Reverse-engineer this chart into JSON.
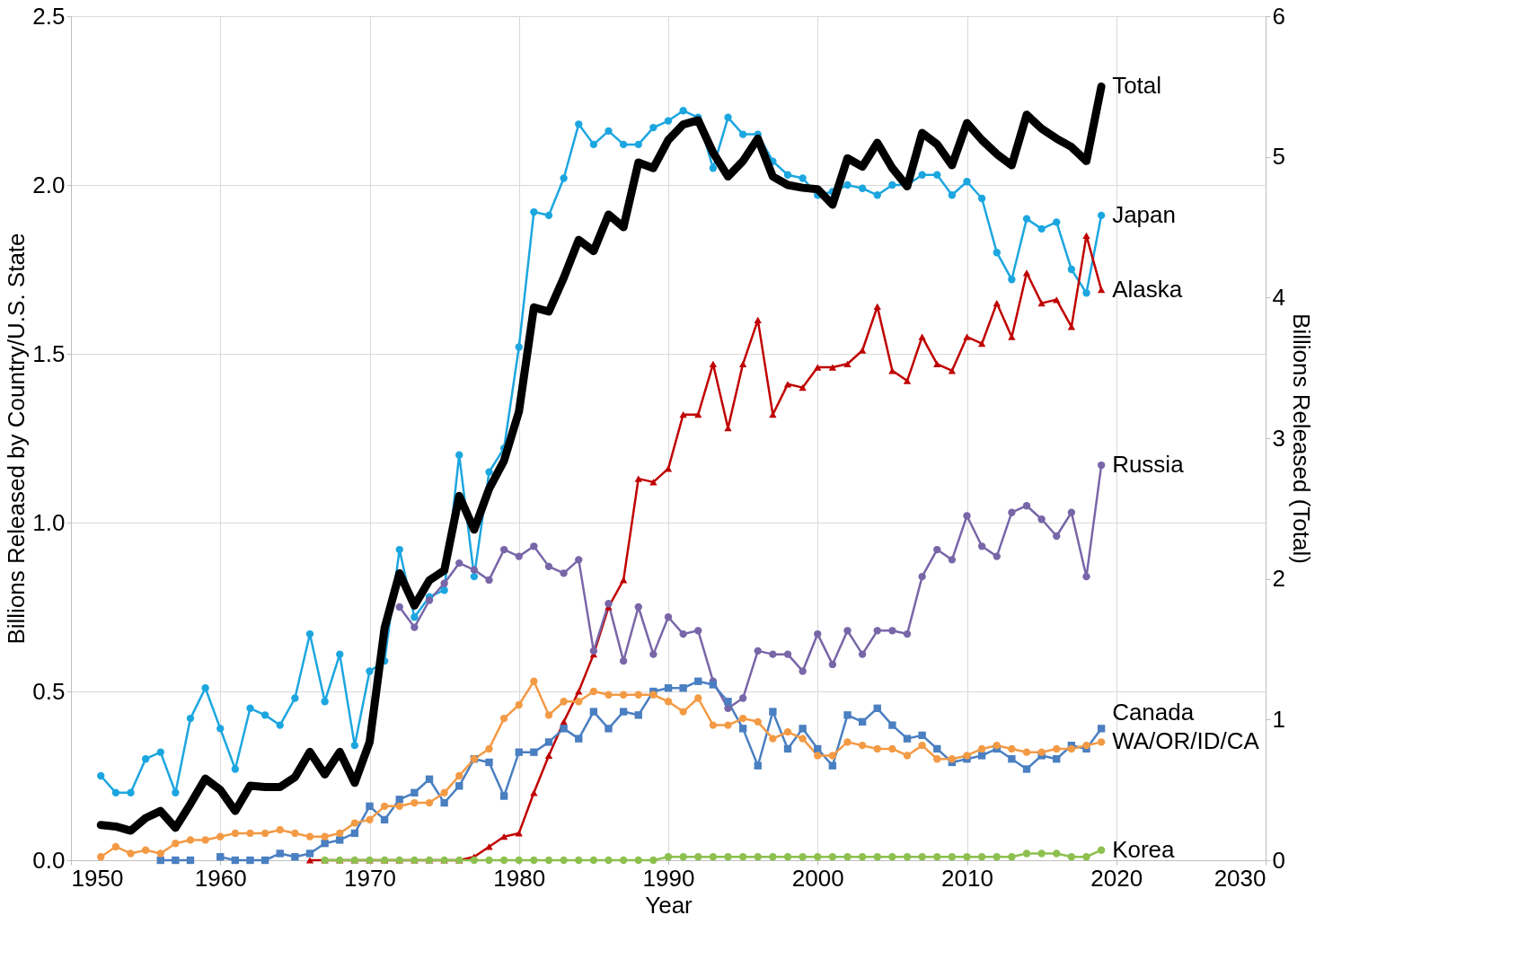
{
  "chart_data": {
    "type": "line",
    "xlabel": "Year",
    "ylabel": "Billions Released by Country/U.S. State",
    "y2label": "Billions Released  (Total)",
    "xlim": [
      1950,
      2030
    ],
    "xticks": [
      1950,
      1960,
      1970,
      1980,
      1990,
      2000,
      2010,
      2020,
      2030
    ],
    "ylim": [
      0,
      2.5
    ],
    "yticks": [
      {
        "value": 0,
        "label": "0.0"
      },
      {
        "value": 0.5,
        "label": "0.5"
      },
      {
        "value": 1,
        "label": "1.0"
      },
      {
        "value": 1.5,
        "label": "1.5"
      },
      {
        "value": 2,
        "label": "2.0"
      },
      {
        "value": 2.5,
        "label": "2.5"
      }
    ],
    "y2lim": [
      0,
      6
    ],
    "y2ticks": [
      0,
      1,
      2,
      3,
      4,
      5,
      6
    ],
    "grid": true,
    "line_style": "solid",
    "x": [
      1952,
      1953,
      1954,
      1955,
      1956,
      1957,
      1958,
      1959,
      1960,
      1961,
      1962,
      1963,
      1964,
      1965,
      1966,
      1967,
      1968,
      1969,
      1970,
      1971,
      1972,
      1973,
      1974,
      1975,
      1976,
      1977,
      1978,
      1979,
      1980,
      1981,
      1982,
      1983,
      1984,
      1985,
      1986,
      1987,
      1988,
      1989,
      1990,
      1991,
      1992,
      1993,
      1994,
      1995,
      1996,
      1997,
      1998,
      1999,
      2000,
      2001,
      2002,
      2003,
      2004,
      2005,
      2006,
      2007,
      2008,
      2009,
      2010,
      2011,
      2012,
      2013,
      2014,
      2015,
      2016,
      2017,
      2018,
      2019
    ],
    "series": [
      {
        "name": "Japan",
        "color": "#1ca6e0",
        "marker": "circle",
        "values": [
          0.25,
          0.2,
          0.2,
          0.3,
          0.32,
          0.2,
          0.42,
          0.51,
          0.39,
          0.27,
          0.45,
          0.43,
          0.4,
          0.48,
          0.67,
          0.47,
          0.61,
          0.34,
          0.56,
          0.59,
          0.92,
          0.72,
          0.78,
          0.8,
          1.2,
          0.84,
          1.15,
          1.22,
          1.52,
          1.92,
          1.91,
          2.02,
          2.18,
          2.12,
          2.16,
          2.12,
          2.12,
          2.17,
          2.19,
          2.22,
          2.2,
          2.05,
          2.2,
          2.15,
          2.15,
          2.07,
          2.03,
          2.02,
          1.97,
          1.98,
          2.0,
          1.99,
          1.97,
          2.0,
          2.0,
          2.03,
          2.03,
          1.97,
          2.01,
          1.96,
          1.8,
          1.72,
          1.9,
          1.87,
          1.89,
          1.75,
          1.68,
          1.91
        ]
      },
      {
        "name": "Alaska",
        "color": "#c00000",
        "marker": "triangle",
        "values": [
          null,
          null,
          null,
          null,
          null,
          null,
          null,
          null,
          null,
          null,
          null,
          null,
          null,
          null,
          0,
          0,
          0,
          0,
          0,
          0,
          0,
          0,
          0,
          0,
          0,
          0.01,
          0.04,
          0.07,
          0.08,
          0.2,
          0.31,
          0.41,
          0.5,
          0.61,
          0.75,
          0.83,
          1.13,
          1.12,
          1.16,
          1.32,
          1.32,
          1.47,
          1.28,
          1.47,
          1.6,
          1.32,
          1.41,
          1.4,
          1.46,
          1.46,
          1.47,
          1.51,
          1.64,
          1.45,
          1.42,
          1.55,
          1.47,
          1.45,
          1.55,
          1.53,
          1.65,
          1.55,
          1.74,
          1.65,
          1.66,
          1.58,
          1.85,
          1.69
        ]
      },
      {
        "name": "Russia",
        "color": "#7866a8",
        "marker": "circle",
        "values": [
          null,
          null,
          null,
          null,
          null,
          null,
          null,
          null,
          null,
          null,
          null,
          null,
          null,
          null,
          null,
          null,
          null,
          null,
          null,
          null,
          0.75,
          0.69,
          0.77,
          0.82,
          0.88,
          0.86,
          0.83,
          0.92,
          0.9,
          0.93,
          0.87,
          0.85,
          0.89,
          0.62,
          0.76,
          0.59,
          0.75,
          0.61,
          0.72,
          0.67,
          0.68,
          0.53,
          0.45,
          0.48,
          0.62,
          0.61,
          0.61,
          0.56,
          0.67,
          0.58,
          0.68,
          0.61,
          0.68,
          0.68,
          0.67,
          0.84,
          0.92,
          0.89,
          1.02,
          0.93,
          0.9,
          1.03,
          1.05,
          1.01,
          0.96,
          1.03,
          0.84,
          1.17
        ]
      },
      {
        "name": "Canada",
        "color": "#4a7fc1",
        "marker": "square",
        "values": [
          null,
          null,
          null,
          null,
          0,
          0,
          0,
          null,
          0.01,
          0,
          0,
          0,
          0.02,
          0.01,
          0.02,
          0.05,
          0.06,
          0.08,
          0.16,
          0.12,
          0.18,
          0.2,
          0.24,
          0.17,
          0.22,
          0.3,
          0.29,
          0.19,
          0.32,
          0.32,
          0.35,
          0.39,
          0.36,
          0.44,
          0.39,
          0.44,
          0.43,
          0.5,
          0.51,
          0.51,
          0.53,
          0.52,
          0.47,
          0.39,
          0.28,
          0.44,
          0.33,
          0.39,
          0.33,
          0.28,
          0.43,
          0.41,
          0.45,
          0.4,
          0.36,
          0.37,
          0.33,
          0.29,
          0.3,
          0.31,
          0.33,
          0.3,
          0.27,
          0.31,
          0.3,
          0.34,
          0.33,
          0.39
        ]
      },
      {
        "name": "WA/OR/ID/CA",
        "color": "#f39a45",
        "marker": "circle",
        "values": [
          0.01,
          0.04,
          0.02,
          0.03,
          0.02,
          0.05,
          0.06,
          0.06,
          0.07,
          0.08,
          0.08,
          0.08,
          0.09,
          0.08,
          0.07,
          0.07,
          0.08,
          0.11,
          0.12,
          0.16,
          0.16,
          0.17,
          0.17,
          0.2,
          0.25,
          0.3,
          0.33,
          0.42,
          0.46,
          0.53,
          0.43,
          0.47,
          0.47,
          0.5,
          0.49,
          0.49,
          0.49,
          0.49,
          0.47,
          0.44,
          0.48,
          0.4,
          0.4,
          0.42,
          0.41,
          0.36,
          0.38,
          0.36,
          0.31,
          0.31,
          0.35,
          0.34,
          0.33,
          0.33,
          0.31,
          0.34,
          0.3,
          0.3,
          0.31,
          0.33,
          0.34,
          0.33,
          0.32,
          0.32,
          0.33,
          0.33,
          0.34,
          0.35
        ]
      },
      {
        "name": "Korea",
        "color": "#8dc04f",
        "marker": "circle",
        "values": [
          null,
          null,
          null,
          null,
          null,
          null,
          null,
          null,
          null,
          null,
          null,
          null,
          null,
          null,
          null,
          0,
          0,
          0,
          0,
          0,
          0,
          0,
          0,
          0,
          0,
          0,
          0,
          0,
          0,
          0,
          0,
          0,
          0,
          0,
          0,
          0,
          0,
          0,
          0.01,
          0.01,
          0.01,
          0.01,
          0.01,
          0.01,
          0.01,
          0.01,
          0.01,
          0.01,
          0.01,
          0.01,
          0.01,
          0.01,
          0.01,
          0.01,
          0.01,
          0.01,
          0.01,
          0.01,
          0.01,
          0.01,
          0.01,
          0.01,
          0.02,
          0.02,
          0.02,
          0.01,
          0.01,
          0.03
        ]
      },
      {
        "name": "Total",
        "color": "#000000",
        "marker": "none",
        "axis": "y2",
        "values": [
          0.25,
          0.24,
          0.21,
          0.3,
          0.35,
          0.23,
          0.4,
          0.58,
          0.5,
          0.35,
          0.53,
          0.52,
          0.52,
          0.59,
          0.77,
          0.61,
          0.77,
          0.55,
          0.84,
          1.65,
          2.04,
          1.81,
          1.99,
          2.06,
          2.59,
          2.35,
          2.64,
          2.84,
          3.19,
          3.93,
          3.9,
          4.14,
          4.41,
          4.33,
          4.59,
          4.5,
          4.96,
          4.92,
          5.12,
          5.23,
          5.26,
          5.03,
          4.86,
          4.97,
          5.13,
          4.86,
          4.8,
          4.78,
          4.77,
          4.66,
          4.99,
          4.93,
          5.1,
          4.92,
          4.79,
          5.17,
          5.09,
          4.94,
          5.24,
          5.12,
          5.02,
          4.94,
          5.3,
          5.2,
          5.13,
          5.07,
          4.97,
          5.5
        ]
      }
    ]
  }
}
